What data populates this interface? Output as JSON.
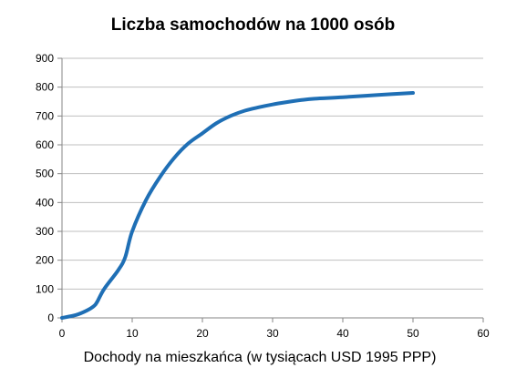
{
  "chart_data": {
    "type": "line",
    "title": "Liczba samochodów na 1000 osób",
    "xlabel": "Dochody na mieszkańca (w tysiącach USD 1995 PPP)",
    "ylabel": "",
    "xlim": [
      0,
      60
    ],
    "ylim": [
      0,
      900
    ],
    "xticks": [
      0,
      10,
      20,
      30,
      40,
      50,
      60
    ],
    "yticks": [
      0,
      100,
      200,
      300,
      400,
      500,
      600,
      700,
      800,
      900
    ],
    "grid": "horizontal",
    "legend": "none",
    "series": [
      {
        "color": "#1f6fb5",
        "x": [
          0,
          2,
          3.5,
          4.5,
          5,
          6,
          8,
          9,
          10,
          12,
          14,
          16,
          18,
          20,
          22,
          24,
          26,
          28,
          30,
          32,
          34,
          36,
          40,
          45,
          50
        ],
        "y": [
          0,
          10,
          25,
          40,
          55,
          100,
          165,
          210,
          300,
          410,
          490,
          555,
          605,
          640,
          675,
          700,
          718,
          730,
          740,
          748,
          755,
          760,
          765,
          773,
          780
        ]
      }
    ]
  }
}
